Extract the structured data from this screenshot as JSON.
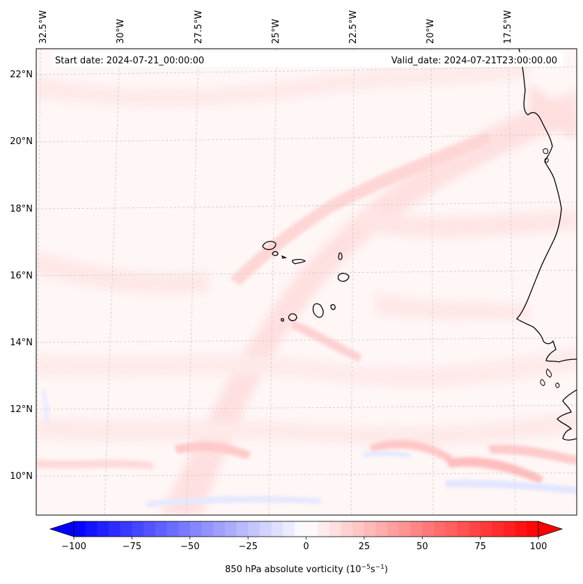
{
  "map": {
    "start_label": "Start date: 2024-07-21_00:00:00",
    "valid_label": "Valid_date: 2024-07-21T23:00:00.00",
    "lon_labels": [
      "32.5°W",
      "30°W",
      "27.5°W",
      "25°W",
      "22.5°W",
      "20°W",
      "17.5°W"
    ],
    "lat_labels": [
      "22°N",
      "20°N",
      "18°N",
      "16°N",
      "14°N",
      "12°N",
      "10°N"
    ],
    "colors": {
      "coast": "#000000",
      "grid": "#c8c8c8",
      "field_base": "#fff5f5"
    }
  },
  "colorbar": {
    "min": -100,
    "max": 100,
    "ticks": [
      "−100",
      "−75",
      "−50",
      "−25",
      "0",
      "25",
      "50",
      "75",
      "100"
    ],
    "title": "850 hPa absolute vorticity",
    "unit_base": "10",
    "unit_exp1": "−5",
    "unit_s": "s",
    "unit_exp2": "−1",
    "colors": {
      "neg": "#0000ff",
      "mid": "#ffffff",
      "pos": "#ff0000"
    }
  }
}
